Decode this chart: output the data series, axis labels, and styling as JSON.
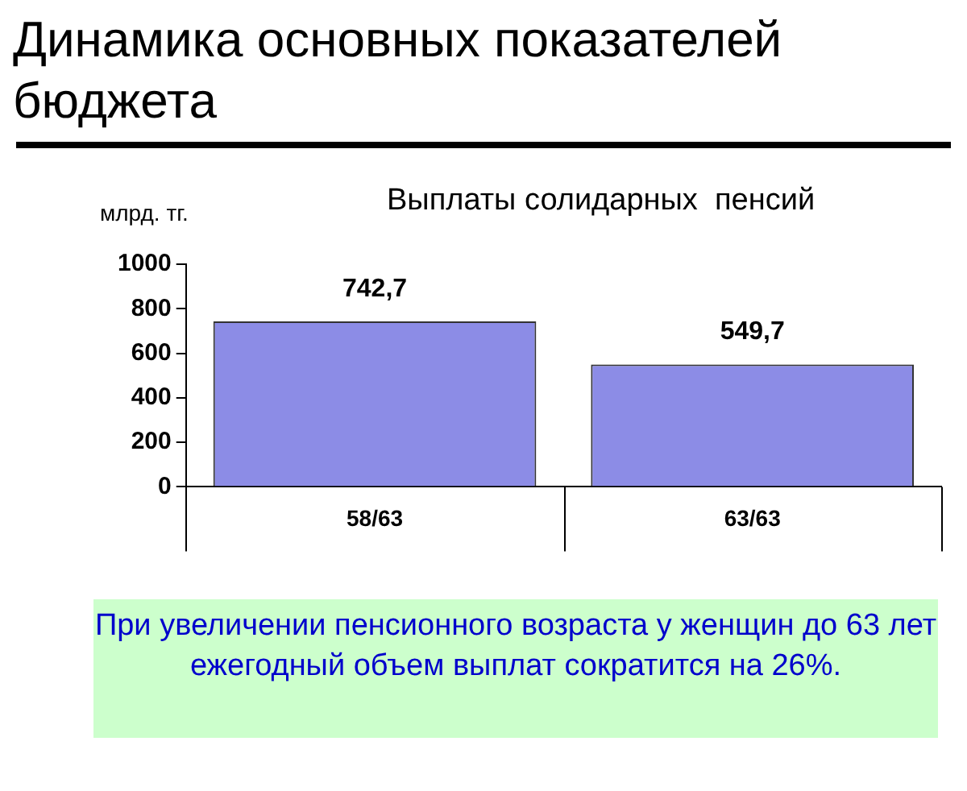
{
  "chart_data": {
    "type": "bar",
    "title": "Динамика основных показателей бюджета",
    "subtitle": "Выплаты солидарных  пенсий",
    "ylabel": "млрд. тг.",
    "categories": [
      "58/63",
      "63/63"
    ],
    "values": [
      742.7,
      549.7
    ],
    "value_labels": [
      "742,7",
      "549,7"
    ],
    "color": "#8c8ce6",
    "ylim": [
      0,
      1000
    ],
    "yticks": [
      0,
      200,
      400,
      600,
      800,
      1000
    ],
    "grid": false,
    "legend": false,
    "annotations": [
      "При увеличении пенсионного возраста у женщин до 63 лет ежегодный объем выплат сократится на 26%."
    ]
  }
}
